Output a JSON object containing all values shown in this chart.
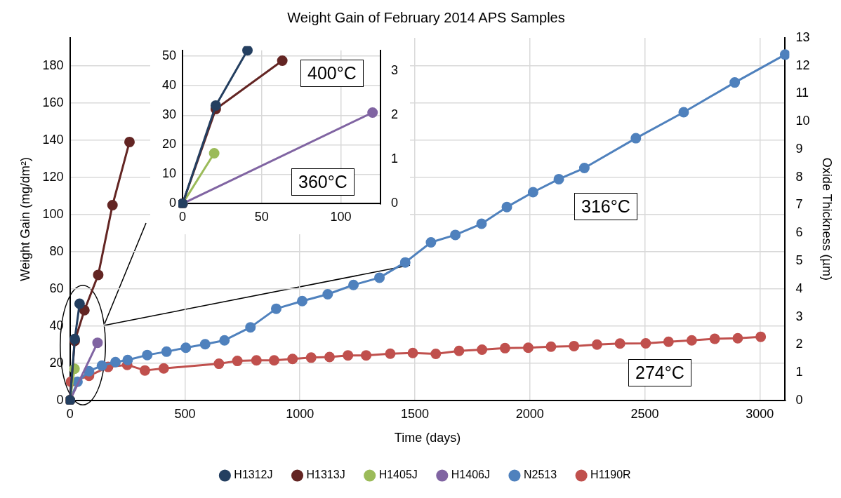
{
  "chart_data": [
    {
      "type": "line",
      "title": "Weight Gain of February 2014 APS Samples",
      "xlabel": "Time (days)",
      "ylabel": "Weight Gain (mg/dm²)",
      "y2label": "Oxide Thickness (µm)",
      "xlim": [
        0,
        3110
      ],
      "xticks": [
        0,
        500,
        1000,
        1500,
        2000,
        2500,
        3000
      ],
      "ylim": [
        0,
        195
      ],
      "yticks": [
        0,
        20,
        40,
        60,
        80,
        100,
        120,
        140,
        160,
        180
      ],
      "y2lim": [
        0,
        13
      ],
      "y2ticks": [
        0,
        1,
        2,
        3,
        4,
        5,
        6,
        7,
        8,
        9,
        10,
        11,
        12,
        13
      ],
      "grid": true,
      "legend": "bottom",
      "marker": "circle",
      "line_style": "solid",
      "annotations": [
        "316°C",
        "274°C"
      ],
      "series": [
        {
          "name": "H1312J",
          "color": "#243f60",
          "x": [
            0,
            21,
            42
          ],
          "values": [
            0,
            33,
            52
          ]
        },
        {
          "name": "H1313J",
          "color": "#632523",
          "x": [
            0,
            21,
            63,
            123,
            185,
            259
          ],
          "values": [
            0,
            32,
            48.5,
            67.5,
            105,
            139
          ]
        },
        {
          "name": "H1405J",
          "color": "#9bbb59",
          "x": [
            0,
            20
          ],
          "values": [
            0,
            17
          ]
        },
        {
          "name": "H1406J",
          "color": "#8064a2",
          "x": [
            0,
            120
          ],
          "values": [
            0,
            31
          ]
        },
        {
          "name": "N2513",
          "color": "#4f81bd",
          "x": [
            0,
            33,
            83,
            139,
            198,
            251,
            336,
            420,
            504,
            588,
            672,
            785,
            897,
            1010,
            1121,
            1233,
            1346,
            1458,
            1570,
            1676,
            1790,
            1900,
            2014,
            2126,
            2237,
            2461,
            2669,
            2891,
            3110
          ],
          "values": [
            0,
            10,
            15.7,
            18.7,
            20.6,
            21.7,
            24.4,
            26.2,
            28.3,
            30.2,
            32.3,
            39.3,
            49.3,
            53.4,
            57.1,
            62.1,
            66,
            74.2,
            85,
            89,
            95,
            104,
            112,
            119,
            125,
            141,
            155,
            171,
            186
          ]
        },
        {
          "name": "H1190R",
          "color": "#c0504d",
          "x": [
            0,
            4,
            83,
            166,
            249,
            326,
            408,
            648,
            728,
            811,
            888,
            968,
            1049,
            1129,
            1209,
            1288,
            1393,
            1491,
            1591,
            1692,
            1792,
            1892,
            1993,
            2092,
            2192,
            2292,
            2392,
            2504,
            2603,
            2704,
            2804,
            2904,
            3004
          ],
          "values": [
            0,
            10,
            13.2,
            18,
            19.1,
            16.1,
            17.2,
            19.7,
            21.2,
            21.5,
            21.5,
            22.3,
            23,
            23.3,
            24.2,
            24.2,
            25.1,
            25.5,
            25,
            26.6,
            27.3,
            28.1,
            28.3,
            28.9,
            29.2,
            30,
            30.6,
            30.7,
            31.5,
            32.3,
            33.1,
            33.4,
            34.2
          ]
        }
      ]
    },
    {
      "type": "line",
      "xlim": [
        0,
        125
      ],
      "xticks": [
        0,
        50,
        100
      ],
      "ylim": [
        0,
        52
      ],
      "yticks": [
        0,
        10,
        20,
        30,
        40,
        50
      ],
      "y2lim": [
        0,
        3.467
      ],
      "y2ticks": [
        0,
        1,
        2,
        3
      ],
      "grid": true,
      "marker": "circle",
      "line_style": "solid",
      "annotations": [
        "400°C",
        "360°C"
      ],
      "series": [
        {
          "color": "#243f60",
          "x": [
            0,
            21,
            41
          ],
          "values": [
            0,
            33.3,
            52
          ]
        },
        {
          "color": "#632523",
          "x": [
            0,
            21,
            63
          ],
          "values": [
            0,
            32.1,
            48.5
          ]
        },
        {
          "color": "#8064a2",
          "x": [
            0,
            120
          ],
          "values": [
            0,
            30.9
          ]
        },
        {
          "color": "#9bbb59",
          "x": [
            0,
            20
          ],
          "values": [
            0,
            17.1
          ]
        }
      ]
    }
  ]
}
